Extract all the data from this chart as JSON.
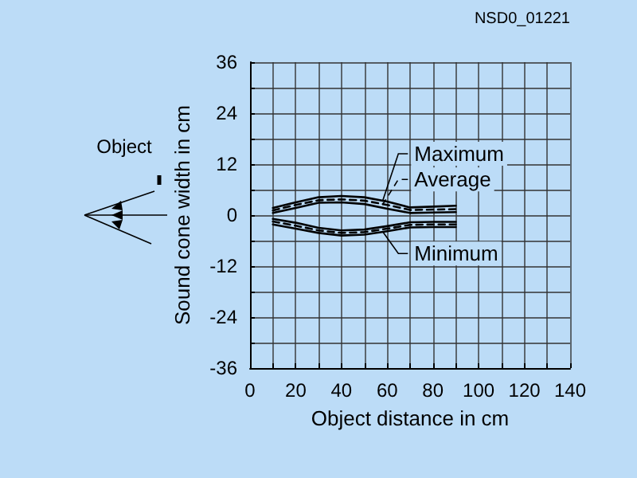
{
  "chart_data": {
    "type": "line",
    "xlabel": "Object distance in cm",
    "ylabel": "Sound cone width in cm",
    "x": [
      10,
      20,
      30,
      40,
      50,
      60,
      70,
      80,
      90
    ],
    "series": [
      {
        "name": "Maximum",
        "color": "#000000",
        "line_style": "solid",
        "values": [
          1.7,
          3,
          4.2,
          4.5,
          4.2,
          3.2,
          1.8,
          2,
          2.2
        ]
      },
      {
        "name": "Average",
        "color": "#000000",
        "line_style": "dashed",
        "values": [
          1.1,
          2.4,
          3.5,
          3.7,
          3.4,
          2.4,
          1.2,
          1.3,
          1.4
        ]
      },
      {
        "color": "#000000",
        "line_style": "solid",
        "values": [
          0.5,
          1.7,
          2.9,
          3,
          2.6,
          1.5,
          0.5,
          0.6,
          0.7
        ]
      },
      {
        "color": "#000000",
        "line_style": "solid",
        "values": [
          -0.9,
          -1.8,
          -3,
          -3.6,
          -3.4,
          -2.6,
          -1.7,
          -1.6,
          -1.6
        ]
      },
      {
        "color": "#000000",
        "line_style": "dashed",
        "values": [
          -1.5,
          -2.5,
          -3.6,
          -4.2,
          -4,
          -3.2,
          -2.3,
          -2.2,
          -2.2
        ]
      },
      {
        "name": "Minimum",
        "color": "#000000",
        "line_style": "solid",
        "values": [
          -2.2,
          -3.2,
          -4.2,
          -4.8,
          -4.6,
          -3.8,
          -2.9,
          -2.8,
          -2.8
        ]
      }
    ],
    "xlim": [
      0,
      140
    ],
    "xticks": [
      0,
      {
        "value": 10,
        "label": null
      },
      20,
      {
        "value": 30,
        "label": null
      },
      40,
      {
        "value": 50,
        "label": null
      },
      60,
      {
        "value": 70,
        "label": null
      },
      80,
      {
        "value": 90,
        "label": null
      },
      100,
      {
        "value": 110,
        "label": null
      },
      120,
      {
        "value": 130,
        "label": null
      },
      140
    ],
    "ylim": [
      -36,
      36
    ],
    "yticks": [
      -36,
      {
        "value": -30,
        "label": null
      },
      -24,
      {
        "value": -18,
        "label": null
      },
      -12,
      {
        "value": -6,
        "label": null
      },
      0,
      {
        "value": 6,
        "label": null
      },
      12,
      {
        "value": 18,
        "label": null
      },
      24,
      {
        "value": 30,
        "label": null
      },
      36
    ],
    "grid": true,
    "legend": "right",
    "marker": "none",
    "annotations": [
      "NSD0_01221",
      "Object"
    ]
  }
}
